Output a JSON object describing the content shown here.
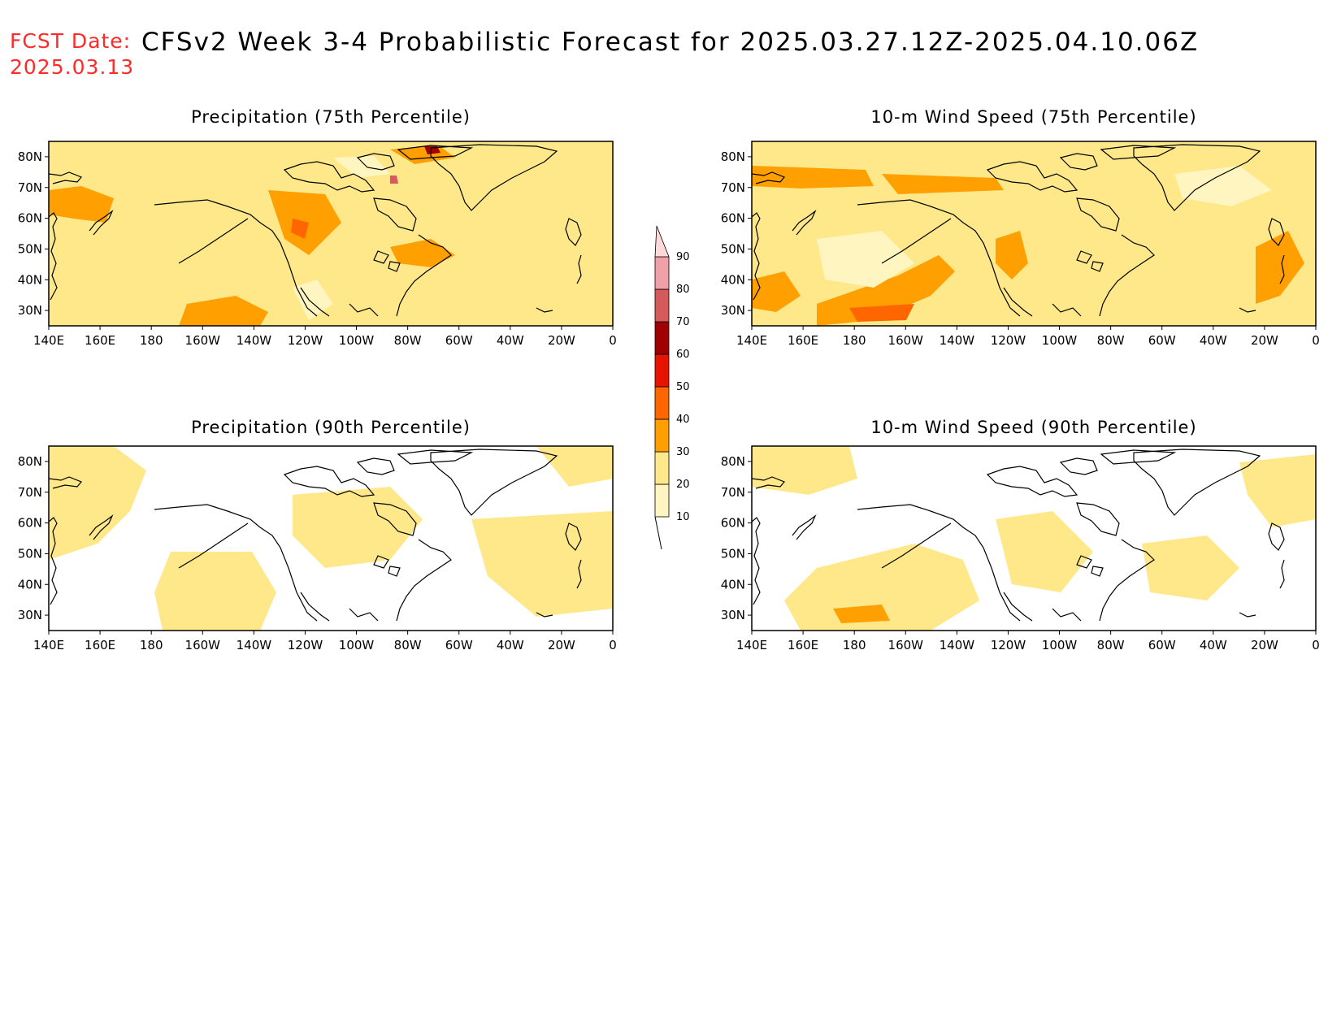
{
  "header": {
    "fcst_label": "FCST Date:",
    "fcst_date": "2025.03.13",
    "title": "CFSv2 Week 3-4 Probabilistic Forecast for 2025.03.27.12Z-2025.04.10.06Z"
  },
  "panels": [
    {
      "id": "precip-75",
      "title": "Precipitation (75th Percentile)",
      "background_level": 20
    },
    {
      "id": "wind-75",
      "title": "10-m Wind Speed (75th Percentile)",
      "background_level": 20
    },
    {
      "id": "precip-90",
      "title": "Precipitation (90th Percentile)",
      "background_level": 10
    },
    {
      "id": "wind-90",
      "title": "10-m Wind Speed (90th Percentile)",
      "background_level": 10
    }
  ],
  "axes": {
    "lon_labels": [
      "140E",
      "160E",
      "180",
      "160W",
      "140W",
      "120W",
      "100W",
      "80W",
      "60W",
      "40W",
      "20W",
      "0"
    ],
    "lat_labels": [
      "80N",
      "70N",
      "60N",
      "50N",
      "40N",
      "30N"
    ],
    "lon_range": [
      140,
      360
    ],
    "lat_range": [
      25,
      85
    ]
  },
  "colorbar": {
    "levels": [
      10,
      20,
      30,
      40,
      50,
      60,
      70,
      80,
      90
    ],
    "colors": [
      "#fff5c0",
      "#ffe88a",
      "#ff9f00",
      "#ff6600",
      "#e81200",
      "#a00000",
      "#d55a5a",
      "#f0a0a8",
      "#ffd8dc"
    ]
  }
}
